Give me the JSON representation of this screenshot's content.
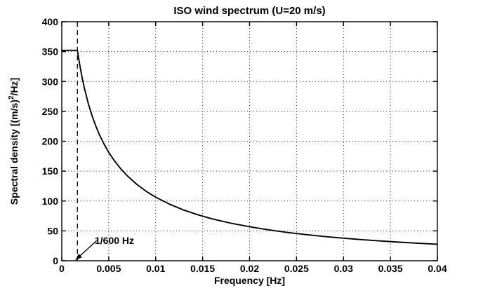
{
  "chart_data": {
    "type": "line",
    "title": "ISO wind spectrum (U=20 m/s)",
    "xlabel": "Frequency [Hz]",
    "ylabel": "Spectral density [(m/s)^2/Hz]",
    "ylabel_parts": [
      "Spectral density [(m/s)",
      "2",
      "/Hz]"
    ],
    "xlim": [
      0,
      0.04
    ],
    "ylim": [
      0,
      400
    ],
    "xticks": [
      0,
      0.005,
      0.01,
      0.015,
      0.02,
      0.025,
      0.03,
      0.035,
      0.04
    ],
    "xtick_labels": [
      "0",
      "0.005",
      "0.01",
      "0.015",
      "0.02",
      "0.025",
      "0.03",
      "0.035",
      "0.04"
    ],
    "yticks": [
      0,
      50,
      100,
      150,
      200,
      250,
      300,
      350,
      400
    ],
    "ytick_labels": [
      "0",
      "50",
      "100",
      "150",
      "200",
      "250",
      "300",
      "350",
      "400"
    ],
    "grid": true,
    "grid_style": "dotted",
    "legend": "none",
    "line_color": "#000000",
    "background_color": "#ffffff",
    "cutoff_line": {
      "x": 0.0016667,
      "style": "dashed",
      "label": "1/600 Hz"
    },
    "annotation": {
      "text": "1/600 Hz",
      "text_x": 0.003514,
      "text_y": 28,
      "arrow": {
        "x1": 0.003716,
        "y1": 33.7,
        "x2": 0.001473,
        "y2": 1.5
      }
    },
    "series": [
      {
        "name": "ISO wind spectrum",
        "x": [
          0,
          0.0016667,
          0.0018,
          0.002,
          0.0022,
          0.0024,
          0.0028,
          0.0032,
          0.0036,
          0.004,
          0.0045,
          0.005,
          0.0056,
          0.0063,
          0.007,
          0.008,
          0.009,
          0.01,
          0.0115,
          0.013,
          0.0145,
          0.016,
          0.018,
          0.02,
          0.022,
          0.024,
          0.026,
          0.028,
          0.03,
          0.032,
          0.034,
          0.036,
          0.038,
          0.04
        ],
        "y": [
          352.1,
          352.1,
          338.2,
          320.2,
          303.9,
          289.3,
          264.5,
          243.9,
          226.4,
          211.2,
          195.3,
          181.4,
          167.4,
          153.5,
          141.8,
          127.7,
          116.1,
          106.4,
          94.5,
          84.8,
          76.9,
          70.2,
          62.9,
          56.9,
          51.8,
          47.5,
          43.8,
          40.6,
          37.7,
          35.3,
          33.1,
          31.1,
          29.3,
          27.7
        ]
      }
    ]
  }
}
